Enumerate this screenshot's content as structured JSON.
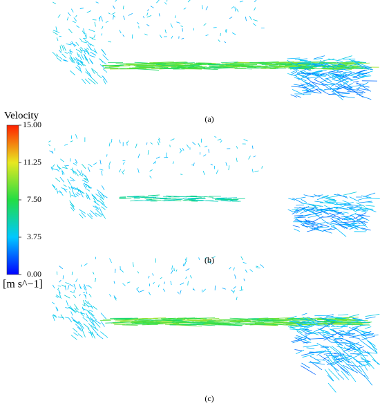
{
  "figure": {
    "colorbar": {
      "title": "Velocity",
      "unit": "[m s^−1]",
      "ticks": [
        {
          "value": 0,
          "label": "0.00"
        },
        {
          "value": 3.75,
          "label": "3.75"
        },
        {
          "value": 7.5,
          "label": "7.50"
        },
        {
          "value": 11.25,
          "label": "11.25"
        },
        {
          "value": 15,
          "label": "15.00"
        }
      ]
    },
    "panels": [
      {
        "label": "(a)"
      },
      {
        "label": "(b)"
      },
      {
        "label": "(c)"
      }
    ]
  }
}
